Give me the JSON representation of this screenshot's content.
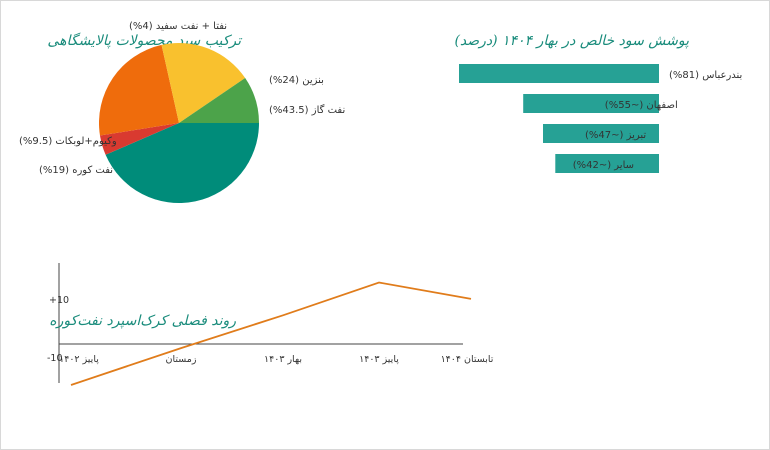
{
  "colors": {
    "title": "#1a8c7c",
    "bar": "#26a195",
    "line": "#e07c1b",
    "axis": "#444444",
    "pie": [
      "#d93a30",
      "#ef6c0c",
      "#f9c12e",
      "#4ca34a",
      "#008c7a"
    ]
  },
  "chart_data": [
    {
      "type": "pie",
      "title": "ترکیب سبد محصولات پالایشگاهی",
      "slices": [
        {
          "label": "نفت گاز (43.5%)",
          "value": 43.5
        },
        {
          "label": "بنزین (24%)",
          "value": 24
        },
        {
          "label": "نفتا + نفت سفید (4%)",
          "value": 4
        },
        {
          "label": "وکیوم+لوبکات (9.5%)",
          "value": 9.5
        },
        {
          "label": "نفت کوره (19%)",
          "value": 19
        }
      ]
    },
    {
      "type": "bar",
      "orientation": "horizontal",
      "title": "پوشش سود خالص در بهار ۱۴۰۴ (درصد)",
      "categories": [
        "بندرعباس (81%)",
        "اصفهان (~55%)",
        "تبریز (~47%)",
        "سایر (~42%)"
      ],
      "values": [
        81,
        55,
        47,
        42
      ],
      "xlim": [
        0,
        100
      ]
    },
    {
      "type": "line",
      "title": "روند فصلی کرک‌اسپرد نفت‌کوره",
      "x": [
        "پاییز ۱۴۰۲",
        "زمستان",
        "بهار ۱۴۰۳",
        "پاییز ۱۴۰۳",
        "تابستان ۱۴۰۴"
      ],
      "values": [
        -10,
        -1,
        7,
        15,
        11
      ],
      "yticks": [
        "+10",
        "-10"
      ],
      "ylim": [
        -10,
        22
      ]
    }
  ]
}
